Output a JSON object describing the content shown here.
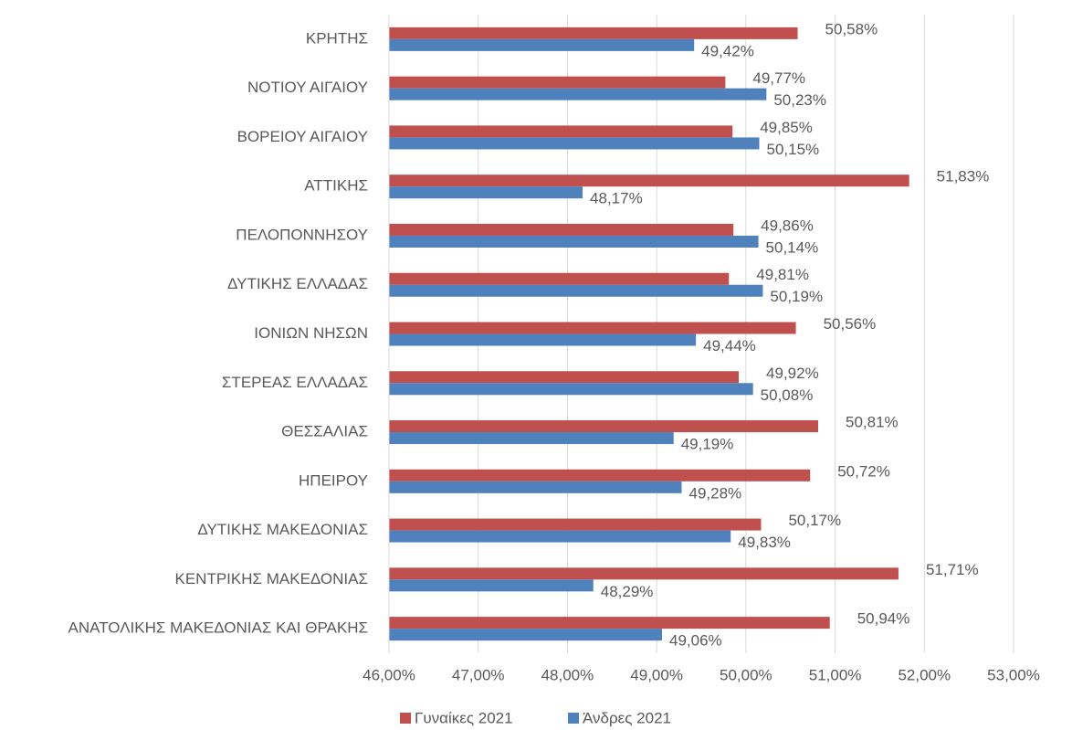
{
  "chart_data": {
    "type": "bar",
    "orientation": "horizontal",
    "categories": [
      "ΚΡΗΤΗΣ",
      "ΝΟΤΙΟΥ ΑΙΓΑΙΟΥ",
      "ΒΟΡΕΙΟΥ ΑΙΓΑΙΟΥ",
      "ΑΤΤΙΚΗΣ",
      "ΠΕΛΟΠΟΝΝΗΣΟΥ",
      "ΔΥΤΙΚΗΣ ΕΛΛΑΔΑΣ",
      "ΙΟΝΙΩΝ ΝΗΣΩΝ",
      "ΣΤΕΡΕΑΣ ΕΛΛΑΔΑΣ",
      "ΘΕΣΣΑΛΙΑΣ",
      "ΗΠΕΙΡΟΥ",
      "ΔΥΤΙΚΗΣ ΜΑΚΕΔΟΝΙΑΣ",
      "ΚΕΝΤΡΙΚΗΣ ΜΑΚΕΔΟΝΙΑΣ",
      "ΑΝΑΤΟΛΙΚΗΣ ΜΑΚΕΔΟΝΙΑΣ ΚΑΙ ΘΡΑΚΗΣ"
    ],
    "series": [
      {
        "name": "Γυναίκες 2021",
        "color": "#c0504d",
        "values": [
          50.58,
          49.77,
          49.85,
          51.83,
          49.86,
          49.81,
          50.56,
          49.92,
          50.81,
          50.72,
          50.17,
          51.71,
          50.94
        ],
        "value_labels": [
          "50,58%",
          "49,77%",
          "49,85%",
          "51,83%",
          "49,86%",
          "49,81%",
          "50,56%",
          "49,92%",
          "50,81%",
          "50,72%",
          "50,17%",
          "51,71%",
          "50,94%"
        ]
      },
      {
        "name": "Άνδρες 2021",
        "color": "#4f81bd",
        "values": [
          49.42,
          50.23,
          50.15,
          48.17,
          50.14,
          50.19,
          49.44,
          50.08,
          49.19,
          49.28,
          49.83,
          48.29,
          49.06
        ],
        "value_labels": [
          "49,42%",
          "50,23%",
          "50,15%",
          "48,17%",
          "50,14%",
          "50,19%",
          "49,44%",
          "50,08%",
          "49,19%",
          "49,28%",
          "49,83%",
          "48,29%",
          "49,06%"
        ]
      }
    ],
    "xlim": [
      46,
      53
    ],
    "xticks": [
      {
        "value": 46,
        "label": "46,00%"
      },
      {
        "value": 47,
        "label": "47,00%"
      },
      {
        "value": 48,
        "label": "48,00%"
      },
      {
        "value": 49,
        "label": "49,00%"
      },
      {
        "value": 50,
        "label": "50,00%"
      },
      {
        "value": 51,
        "label": "51,00%"
      },
      {
        "value": 52,
        "label": "52,00%"
      },
      {
        "value": 53,
        "label": "53,00%"
      }
    ],
    "grid": true,
    "legend": "bottom"
  }
}
